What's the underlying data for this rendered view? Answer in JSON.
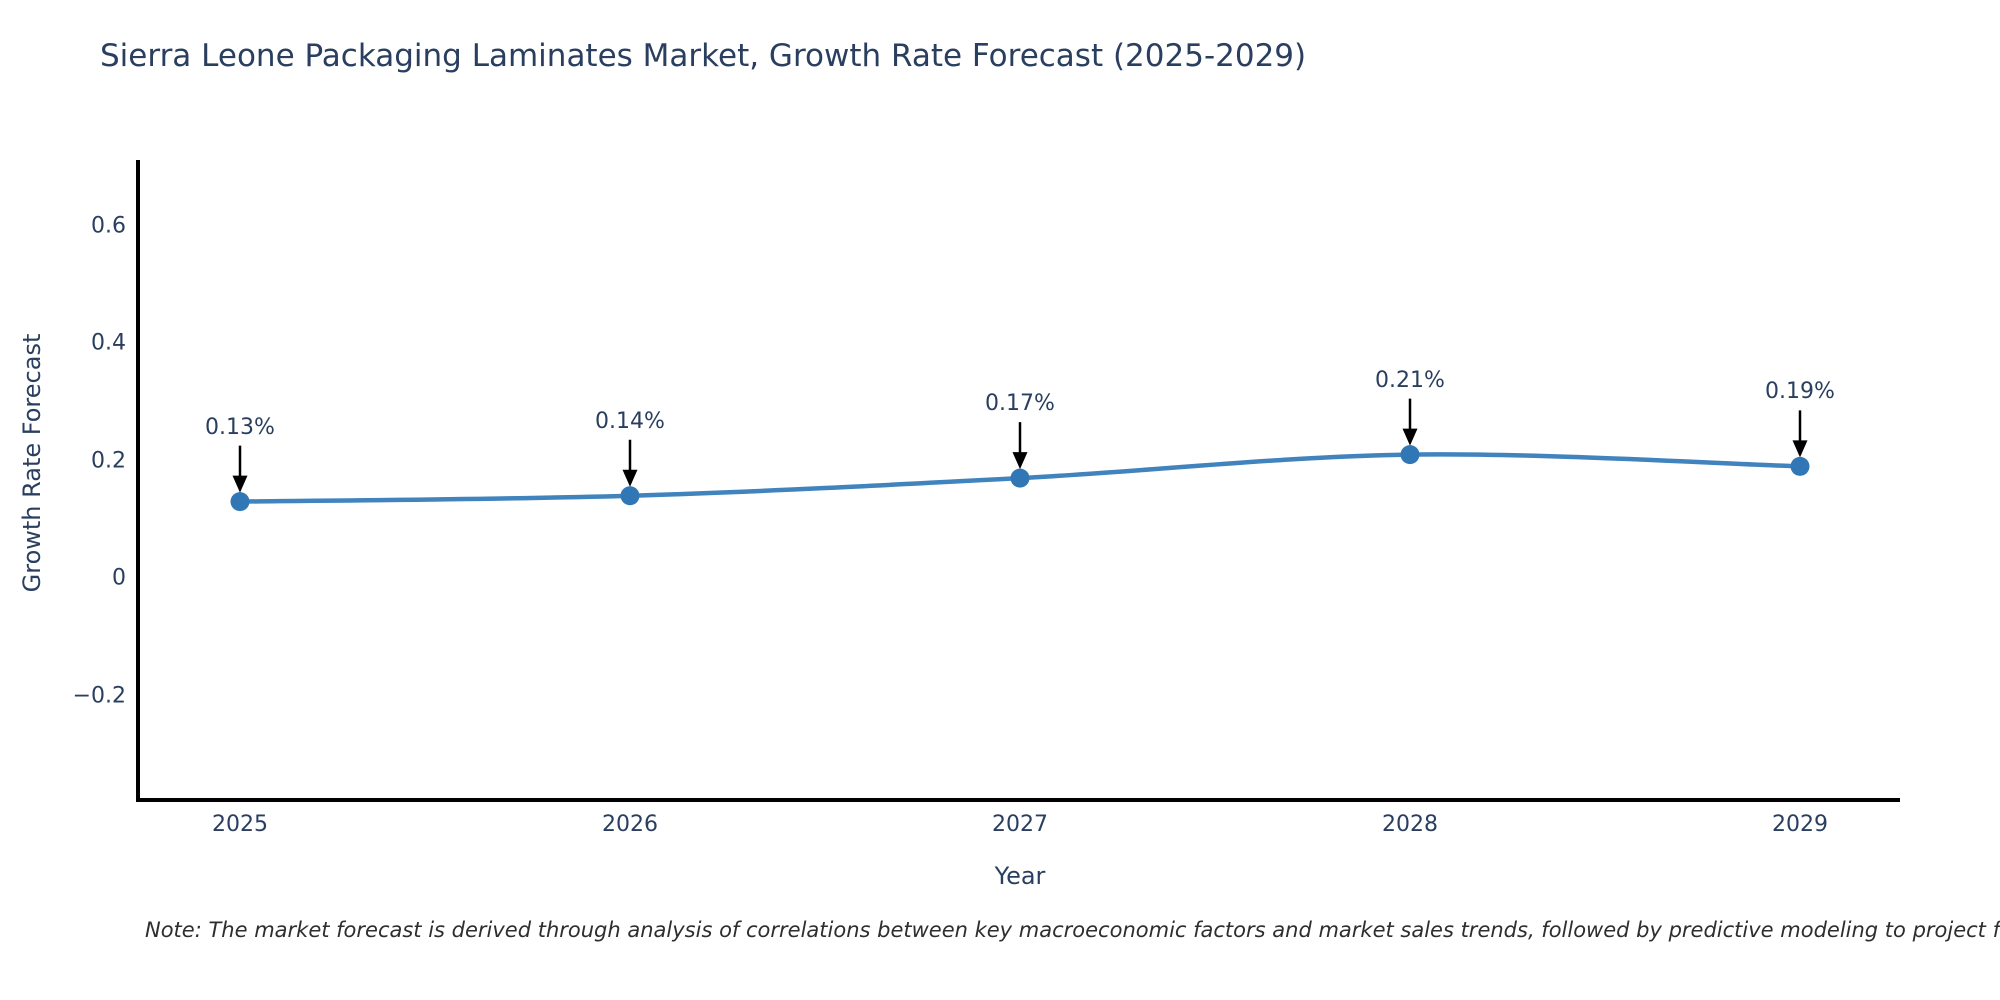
{
  "chart_data": {
    "type": "line",
    "line_shape": "spline",
    "title": "Sierra Leone Packaging Laminates Market, Growth Rate Forecast (2025-2029)",
    "xlabel": "Year",
    "ylabel": "Growth Rate Forecast",
    "categories": [
      "2025",
      "2026",
      "2027",
      "2028",
      "2029"
    ],
    "series": [
      {
        "name": "Growth Rate Forecast",
        "values": [
          0.13,
          0.14,
          0.17,
          0.21,
          0.19
        ],
        "point_labels": [
          "0.13%",
          "0.14%",
          "0.17%",
          "0.21%",
          "0.19%"
        ]
      }
    ],
    "y_tick_values": [
      0.6,
      0.4,
      0.2,
      0,
      -0.2
    ],
    "y_tick_labels": [
      "0.6",
      "0.4",
      "0.2",
      "0",
      "−0.2"
    ],
    "ylim": [
      -0.38,
      0.71
    ],
    "grid": false,
    "legend": false,
    "note": "Note: The market forecast is derived through analysis of correlations between key macroeconomic factors and market sales trends, followed by predictive modeling to project future sales",
    "colors": {
      "line": "#4183bd",
      "marker": "#3277b5",
      "arrow": "#000000",
      "axis": "#000000",
      "text": "#2a3f5f",
      "background": "#ffffff"
    }
  }
}
